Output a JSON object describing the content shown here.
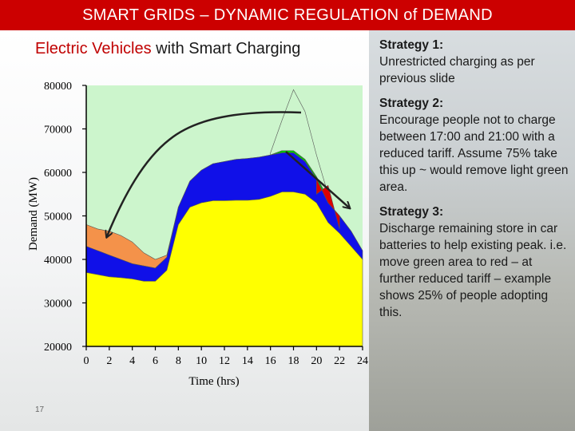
{
  "slide": {
    "title": "SMART GRIDS – DYNAMIC REGULATION of DEMAND",
    "subtitle_highlight": "Electric Vehicles",
    "subtitle_rest": " with Smart Charging",
    "page_number": "17"
  },
  "strategies": [
    {
      "title": "Strategy 1:",
      "text": "Unrestricted charging as per previous slide"
    },
    {
      "title": "Strategy 2:",
      "text": "Encourage people not to charge between 17:00 and 21:00 with a reduced tariff. Assume 75% take this up ~ would remove light green area."
    },
    {
      "title": "Strategy 3:",
      "text": "Discharge remaining store in car batteries to help existing peak.   i.e. move green area to red – at further reduced tariff – example shows 25% of people adopting this."
    }
  ],
  "colors": {
    "title_bar": "#cc0000",
    "base_demand": "#ffff00",
    "blue": "#1010e8",
    "orange": "#f4924a",
    "light_green": "#ccf5cc",
    "green": "#00cc00",
    "red": "#dd0000"
  },
  "chart_data": {
    "type": "area",
    "xlabel": "Time (hrs)",
    "ylabel": "Demand (MW)",
    "xlim": [
      0,
      24
    ],
    "ylim": [
      20000,
      80000
    ],
    "x_ticks": [
      "0",
      "2",
      "4",
      "6",
      "8",
      "10",
      "12",
      "14",
      "16",
      "18",
      "20",
      "22",
      "24"
    ],
    "y_ticks": [
      "20000",
      "30000",
      "40000",
      "50000",
      "60000",
      "70000",
      "80000"
    ],
    "x": [
      0,
      1,
      2,
      3,
      4,
      5,
      6,
      7,
      8,
      9,
      10,
      11,
      12,
      13,
      14,
      15,
      16,
      17,
      18,
      19,
      20,
      21,
      22,
      23,
      24
    ],
    "series": [
      {
        "values": [
          37000,
          36500,
          36000,
          35800,
          35500,
          35000,
          35000,
          37500,
          48000,
          52000,
          53000,
          53500,
          53500,
          53600,
          53600,
          53800,
          54500,
          55500,
          55500,
          55000,
          53000,
          48500,
          46000,
          43000,
          40000
        ]
      },
      {
        "values": [
          43000,
          42000,
          41000,
          40000,
          39000,
          38500,
          38000,
          40500,
          52000,
          58000,
          60500,
          62000,
          62500,
          63000,
          63200,
          63500,
          64000,
          64500,
          64500,
          62500,
          58500,
          53000,
          50000,
          46500,
          42000
        ]
      },
      {
        "values": [
          48000,
          47000,
          46500,
          45500,
          44000,
          41500,
          40000,
          41000,
          52000,
          58000,
          60500,
          62000,
          62500,
          63000,
          63200,
          63500,
          64000,
          64500,
          64500,
          62500,
          58500,
          53000,
          50000,
          46500,
          42000
        ]
      },
      {
        "values": [
          null,
          null,
          null,
          null,
          null,
          null,
          null,
          null,
          null,
          null,
          null,
          null,
          null,
          null,
          null,
          null,
          64000,
          65000,
          65000,
          63000,
          59000,
          54000,
          null,
          null,
          null
        ]
      },
      {
        "values": [
          null,
          null,
          null,
          null,
          null,
          null,
          null,
          null,
          null,
          null,
          null,
          null,
          null,
          null,
          null,
          null,
          64500,
          72000,
          79000,
          74000,
          64000,
          55000,
          null,
          null,
          null
        ]
      },
      {
        "values": [
          null,
          null,
          null,
          null,
          null,
          null,
          null,
          null,
          null,
          null,
          null,
          null,
          null,
          null,
          null,
          null,
          null,
          null,
          null,
          null,
          55000,
          57000,
          47000,
          null,
          null
        ]
      }
    ]
  }
}
